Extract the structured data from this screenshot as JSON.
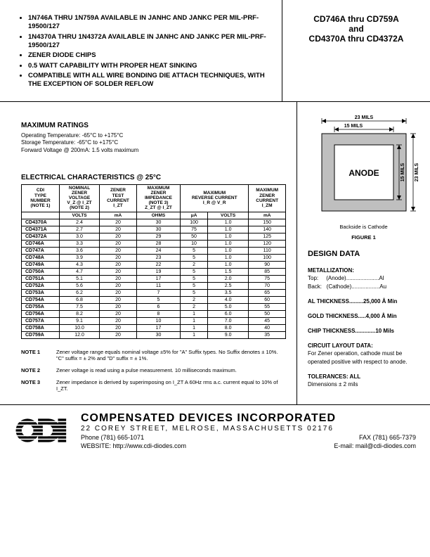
{
  "title": {
    "line1": "CD746A thru CD759A",
    "line2": "and",
    "line3": "CD4370A thru CD4372A"
  },
  "features": [
    "1N746A THRU 1N759A AVAILABLE IN JANHC AND JANKC PER MIL-PRF-19500/127",
    "1N4370A THRU 1N4372A AVAILABLE IN JANHC AND JANKC PER MIL-PRF-19500/127",
    "ZENER DIODE CHIPS",
    "0.5 WATT CAPABILITY WITH PROPER HEAT SINKING",
    "COMPATIBLE WITH ALL WIRE BONDING DIE ATTACH TECHNIQUES, WITH THE EXCEPTION OF SOLDER REFLOW"
  ],
  "max_ratings": {
    "header": "MAXIMUM RATINGS",
    "lines": [
      "Operating Temperature:  -65°C to +175°C",
      "Storage Temperature:  -65°C to +175°C",
      "Forward Voltage @ 200mA: 1.5 volts maximum"
    ]
  },
  "elec_header": "ELECTRICAL CHARACTERISTICS @ 25°C",
  "elec_columns": {
    "c1": [
      "CDI",
      "TYPE",
      "NUMBER",
      "",
      "(NOTE 1)"
    ],
    "c2": [
      "NOMINAL",
      "ZENER",
      "VOLTAGE",
      "V_Z @ I_ZT",
      "(NOTE 2)"
    ],
    "c3": [
      "ZENER",
      "TEST",
      "CURRENT",
      "I_ZT",
      ""
    ],
    "c4": [
      "MAXIMUM",
      "ZENER",
      "IMPEDANCE",
      "(NOTE 3)",
      "Z_ZT @ I_ZT"
    ],
    "c5a": [
      "MAXIMUM",
      "REVERSE CURRENT",
      "I_R @ V_R"
    ],
    "c6": [
      "MAXIMUM",
      "ZENER",
      "CURRENT",
      "",
      "I_ZM"
    ]
  },
  "unit_row": [
    "",
    "VOLTS",
    "mA",
    "OHMS",
    "μA",
    "VOLTS",
    "mA"
  ],
  "rows": [
    [
      "CD4370A",
      "2.4",
      "20",
      "30",
      "100",
      "1.0",
      "150"
    ],
    [
      "CD4371A",
      "2.7",
      "20",
      "30",
      "75",
      "1.0",
      "140"
    ],
    [
      "CD4372A",
      "3.0",
      "20",
      "29",
      "50",
      "1.0",
      "125"
    ],
    [
      "CD746A",
      "3.3",
      "20",
      "28",
      "10",
      "1.0",
      "120"
    ],
    [
      "CD747A",
      "3.6",
      "20",
      "24",
      "5",
      "1.0",
      "110"
    ],
    [
      "CD748A",
      "3.9",
      "20",
      "23",
      "5",
      "1.0",
      "100"
    ],
    [
      "CD749A",
      "4.3",
      "20",
      "22",
      "2",
      "1.0",
      "90"
    ],
    [
      "CD750A",
      "4.7",
      "20",
      "19",
      "5",
      "1.5",
      "85"
    ],
    [
      "CD751A",
      "5.1",
      "20",
      "17",
      "5",
      "2.0",
      "75"
    ],
    [
      "CD752A",
      "5.6",
      "20",
      "11",
      "5",
      "2.5",
      "70"
    ],
    [
      "CD753A",
      "6.2",
      "20",
      "7",
      "5",
      "3.5",
      "65"
    ],
    [
      "CD754A",
      "6.8",
      "20",
      "5",
      "2",
      "4.0",
      "60"
    ],
    [
      "CD755A",
      "7.5",
      "20",
      "6",
      "2",
      "5.0",
      "55"
    ],
    [
      "CD756A",
      "8.2",
      "20",
      "8",
      "1",
      "6.0",
      "50"
    ],
    [
      "CD757A",
      "9.1",
      "20",
      "10",
      "1",
      "7.0",
      "45"
    ],
    [
      "CD758A",
      "10.0",
      "20",
      "17",
      "1",
      "8.0",
      "40"
    ],
    [
      "CD759A",
      "12.0",
      "20",
      "30",
      "1",
      "9.0",
      "35"
    ]
  ],
  "group_breaks": [
    3,
    6,
    9,
    12,
    15
  ],
  "notes": [
    {
      "label": "NOTE 1",
      "text": "Zener voltage range equals nominal voltage ±5% for \"A\" Suffix types. No Suffix denotes ± 10%. \"C\" suffix = ± 2% and \"D\" suffix = ± 1%."
    },
    {
      "label": "NOTE 2",
      "text": "Zener voltage is read using a pulse measurement. 10 milliseconds maximum."
    },
    {
      "label": "NOTE 3",
      "text": "Zener impedance is derived by superimposing on I_ZT A 60Hz rms a.c. current equal to 10% of I_ZT."
    }
  ],
  "figure": {
    "dim_outer": "23 MILS",
    "dim_inner": "15 MILS",
    "anode": "ANODE",
    "backside": "Backside is Cathode",
    "caption": "FIGURE 1"
  },
  "design_data": {
    "header": "DESIGN DATA",
    "metallization_hdr": "METALLIZATION:",
    "met_top": "Top:     (Anode).....................Al",
    "met_back": "Back:   (Cathode)..................Au",
    "al_thick": "AL  THICKNESS.........25,000 Å Min",
    "gold_thick": "GOLD  THICKNESS.....4,000 Å Min",
    "chip_thick": "CHIP  THICKNESS.............10 Mils",
    "circuit_hdr": "CIRCUIT LAYOUT DATA:",
    "circuit_txt": "For Zener operation, cathode must be operated positive with respect to anode.",
    "tol_hdr": "TOLERANCES: ALL",
    "tol_txt": "Dimensions ±  2 mils"
  },
  "footer": {
    "company": "COMPENSATED DEVICES INCORPORATED",
    "address": "22 COREY STREET, MELROSE, MASSACHUSETTS 02176",
    "phone": "Phone (781) 665-1071",
    "fax": "FAX (781) 665-7379",
    "website": "WEBSITE:  http://www.cdi-diodes.com",
    "email": "E-mail: mail@cdi-diodes.com"
  }
}
